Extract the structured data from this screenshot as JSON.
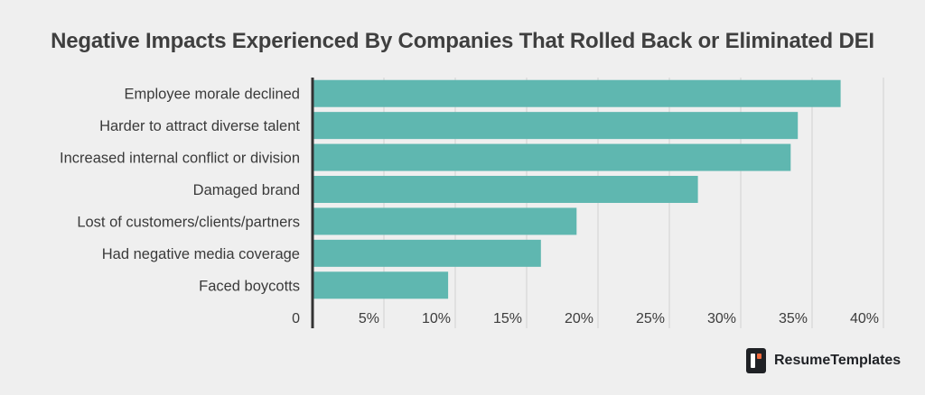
{
  "chart_data": {
    "type": "bar",
    "orientation": "horizontal",
    "title": "Negative Impacts Experienced By Companies That Rolled Back or Eliminated DEI",
    "categories": [
      "Employee morale declined",
      "Harder to attract diverse talent",
      "Increased internal conflict or division",
      "Damaged brand",
      "Lost of customers/clients/partners",
      "Had negative media coverage",
      "Faced boycotts"
    ],
    "values": [
      37,
      34,
      33.5,
      27,
      18.5,
      16,
      9.5
    ],
    "xlim": [
      0,
      40
    ],
    "x_ticks": [
      0,
      5,
      10,
      15,
      20,
      25,
      30,
      35,
      40
    ],
    "x_tick_labels": [
      "0",
      "5%",
      "10%",
      "15%",
      "20%",
      "25%",
      "30%",
      "35%",
      "40%"
    ],
    "xlabel": "",
    "ylabel": "",
    "grid": true,
    "bar_color": "#5fb7b0",
    "grid_color": "#d2d2d2"
  },
  "brand": {
    "name": "ResumeTemplates",
    "icon": "resumetemplates-logo-icon"
  }
}
